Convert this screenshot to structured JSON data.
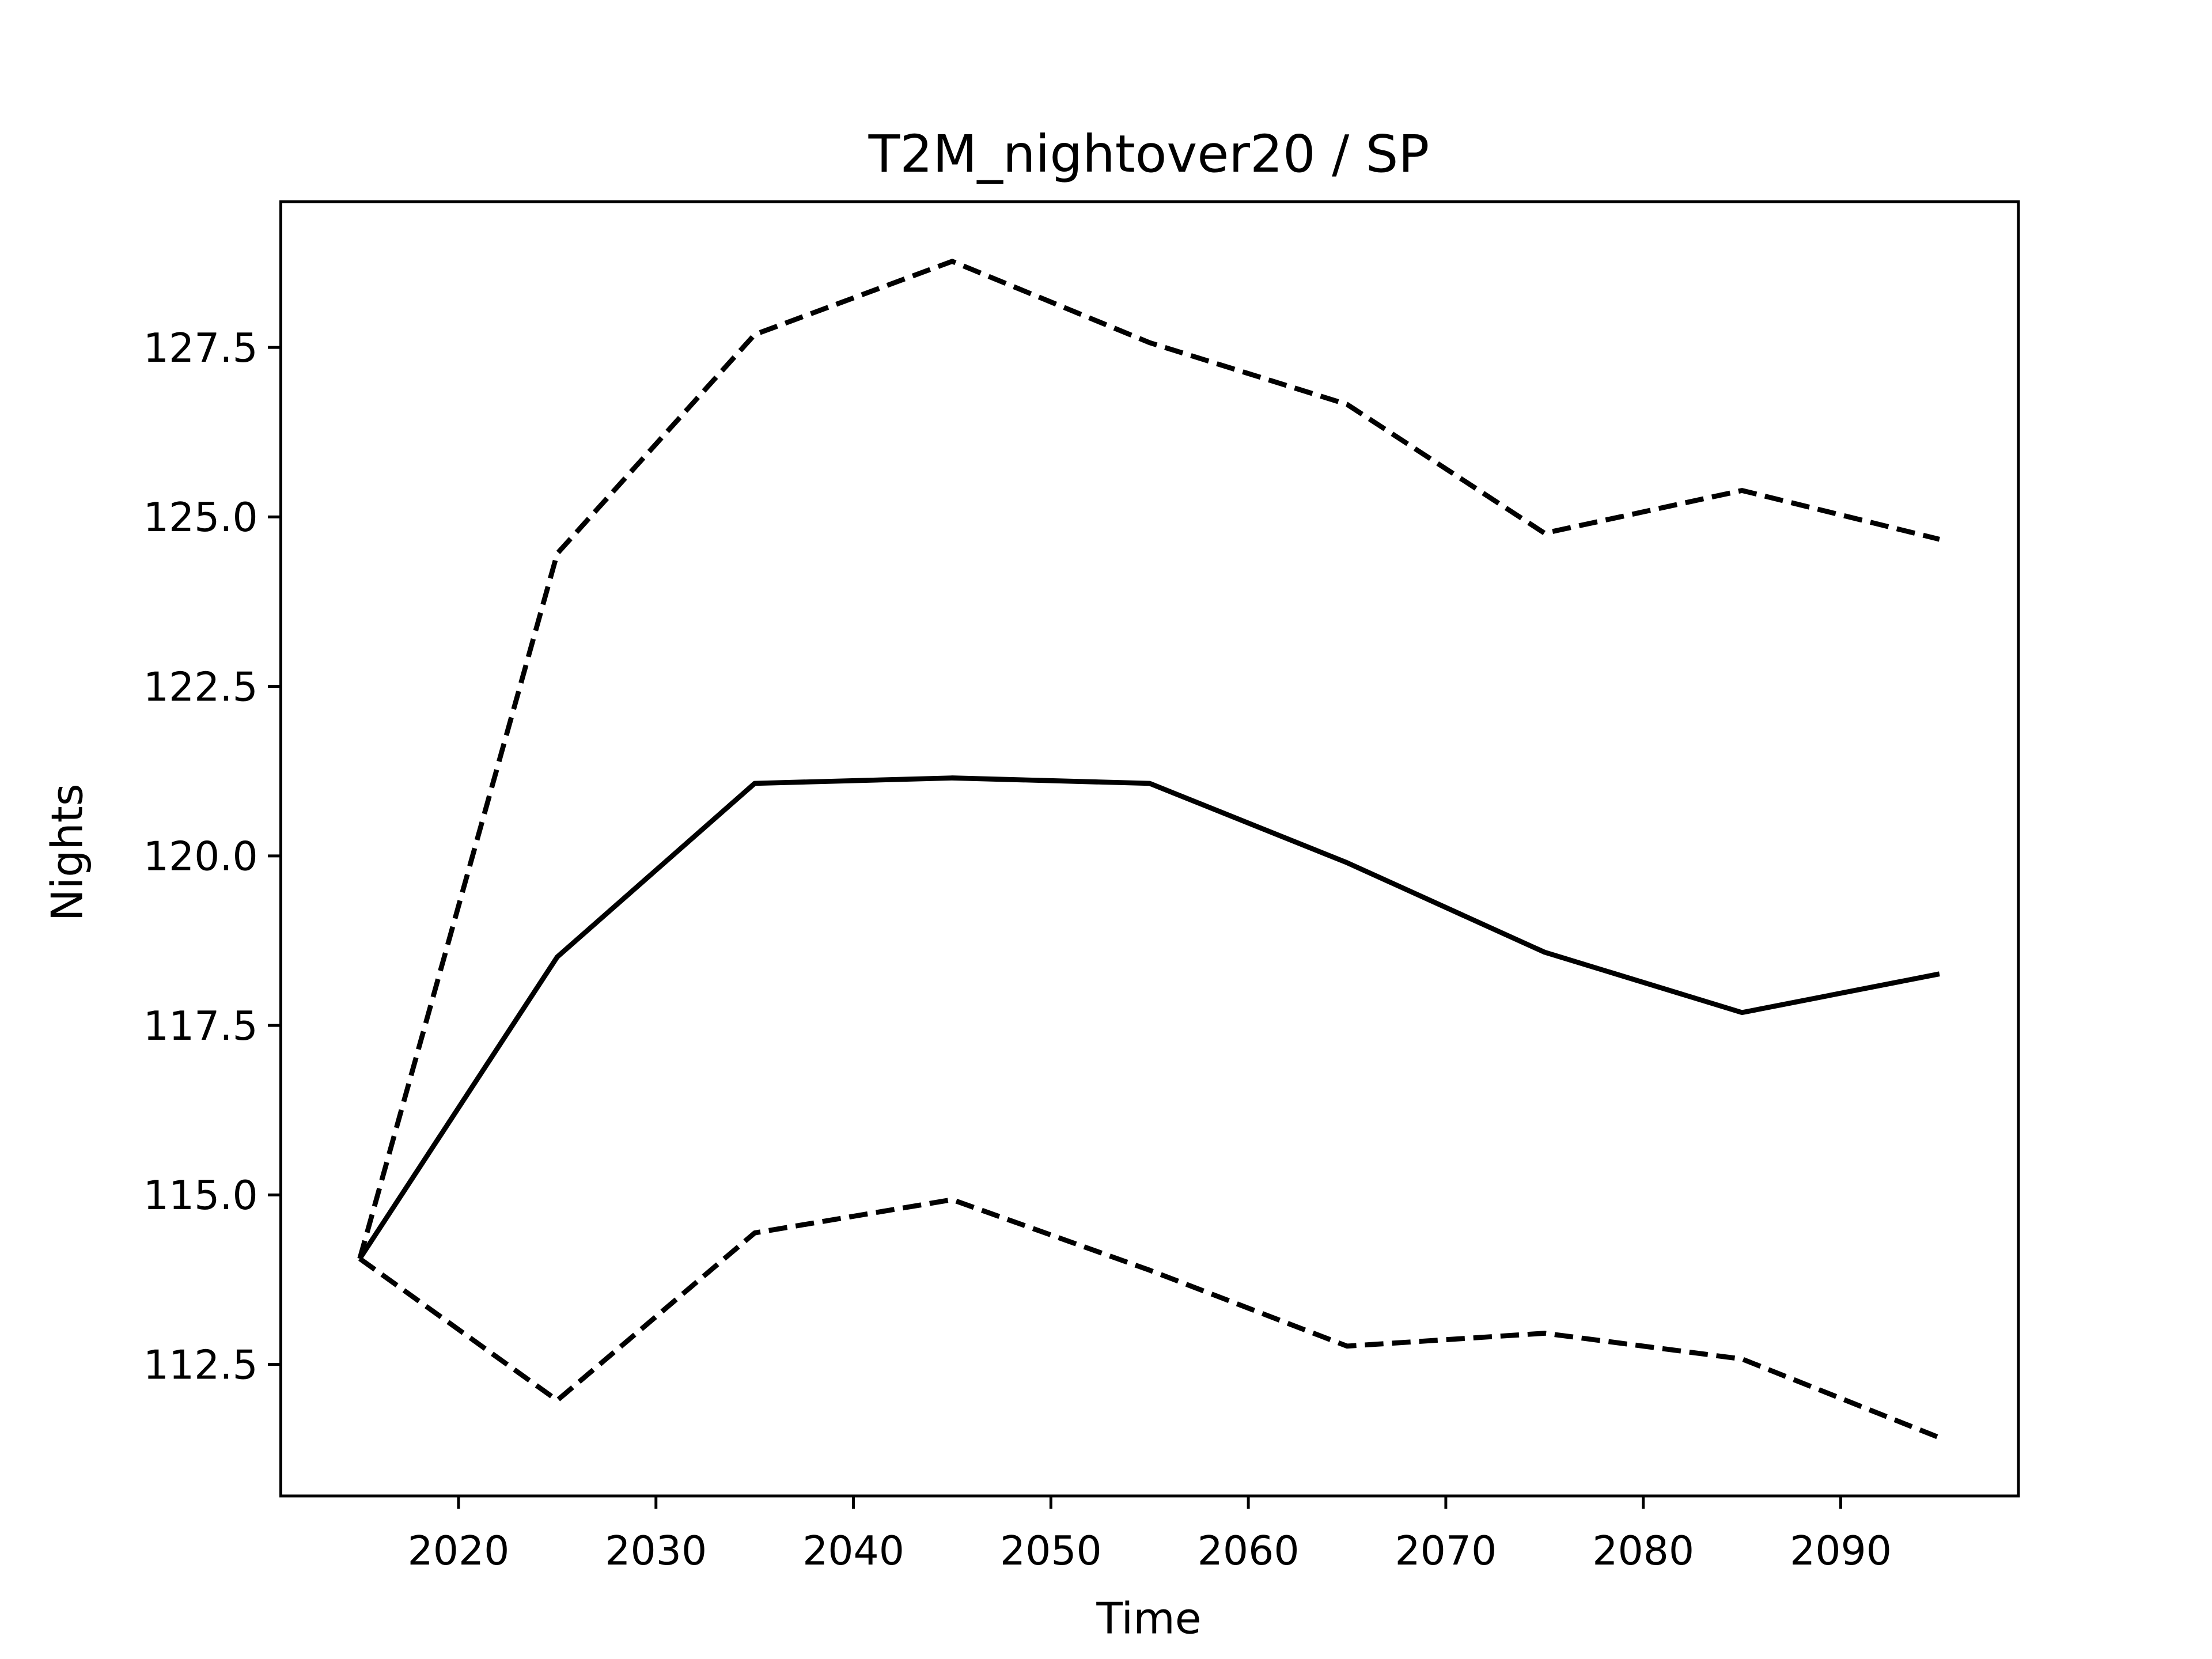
{
  "chart_data": {
    "type": "line",
    "title": "T2M_nightover20 / SP",
    "xlabel": "Time",
    "ylabel": "Nights",
    "x": [
      2015,
      2025,
      2035,
      2045,
      2055,
      2065,
      2075,
      2085,
      2095
    ],
    "series": [
      {
        "color": "#000000",
        "linestyle": "solid",
        "values": [
          114.06,
          118.51,
          121.07,
          121.15,
          121.07,
          119.9,
          118.58,
          117.69,
          118.26
        ]
      },
      {
        "color": "#000000",
        "linestyle": "dashed",
        "values": [
          114.06,
          124.46,
          127.69,
          128.77,
          127.57,
          126.66,
          124.76,
          125.39,
          124.67
        ]
      },
      {
        "color": "#000000",
        "linestyle": "dashed",
        "values": [
          114.06,
          111.97,
          114.44,
          114.93,
          113.89,
          112.77,
          112.96,
          112.58,
          111.42
        ]
      }
    ],
    "xlim": [
      2011,
      2099
    ],
    "xticks": [
      2020,
      2030,
      2040,
      2050,
      2060,
      2070,
      2080,
      2090
    ],
    "ylim": [
      110.56,
      129.65
    ],
    "yticks": [
      112.5,
      {
        "value": 115,
        "label": "115.0"
      },
      117.5,
      {
        "value": 120,
        "label": "120.0"
      },
      122.5,
      {
        "value": 125,
        "label": "125.0"
      },
      127.5
    ],
    "grid": false
  }
}
